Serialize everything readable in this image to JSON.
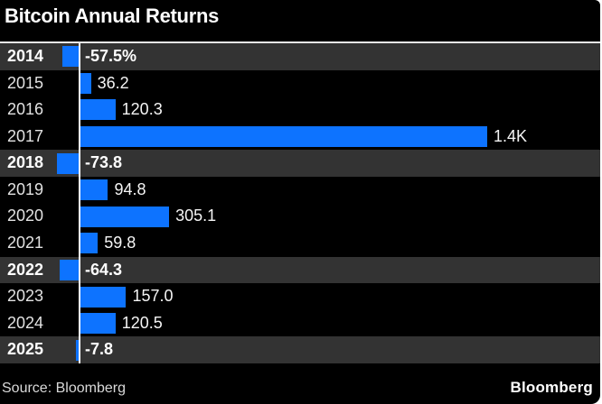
{
  "header": {
    "title": "Bitcoin Annual Returns"
  },
  "footer": {
    "source": "Source: Bloomberg",
    "brand": "Bloomberg"
  },
  "colors": {
    "background": "#000000",
    "bar_blue": "#0d73ff",
    "highlight_row": "#333333",
    "axis_line": "#ffffff",
    "title_text": "#ffffff",
    "label_text": "#e2e2e2",
    "value_text": "#f5f5f5",
    "source_text": "#d9d9d9"
  },
  "chart_data": {
    "type": "bar",
    "orientation": "horizontal",
    "title": "Bitcoin Annual Returns",
    "categories": [
      "2014",
      "2015",
      "2016",
      "2017",
      "2018",
      "2019",
      "2020",
      "2021",
      "2022",
      "2023",
      "2024",
      "2025"
    ],
    "values": [
      -57.5,
      36.2,
      120.3,
      1400,
      -73.8,
      94.8,
      305.1,
      59.8,
      -64.3,
      157.0,
      120.5,
      -7.8
    ],
    "value_labels": [
      "-57.5%",
      "36.2",
      "120.3",
      "1.4K",
      "-73.8",
      "94.8",
      "305.1",
      "59.8",
      "-64.3",
      "157.0",
      "120.5",
      "-7.8"
    ],
    "highlighted_categories": [
      "2014",
      "2018",
      "2022",
      "2025"
    ],
    "highlight_rule": "negative-return rows have gray row background and bold labels",
    "unit": "percent",
    "xlim": [
      -100,
      1500
    ],
    "grid": false,
    "legend": false,
    "baseline_axis": "vertical white line at zero",
    "source": "Source: Bloomberg"
  }
}
